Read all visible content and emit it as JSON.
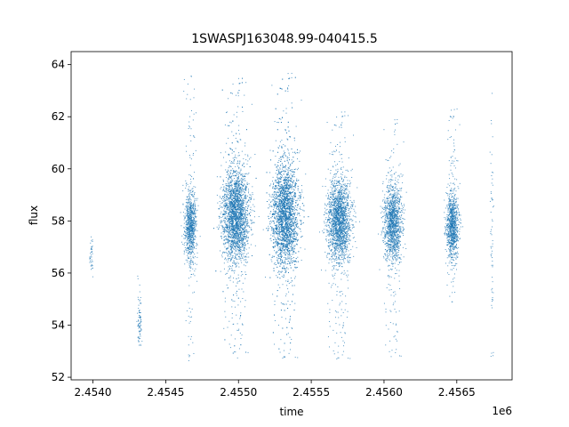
{
  "chart_data": {
    "type": "scatter",
    "title": "1SWASPJ163048.99-040415.5",
    "xlabel": "time",
    "ylabel": "flux",
    "x_offset_label": "1e6",
    "x_multiplier": 1000000,
    "xlim": [
      2.45385,
      2.45688
    ],
    "ylim": [
      51.9,
      64.5
    ],
    "x_ticks": [
      2.454,
      2.4545,
      2.455,
      2.4555,
      2.456,
      2.4565
    ],
    "x_tick_labels": [
      "2.4540",
      "2.4545",
      "2.4550",
      "2.4555",
      "2.4560",
      "2.4565"
    ],
    "y_ticks": [
      52,
      54,
      56,
      58,
      60,
      62,
      64
    ],
    "y_tick_labels": [
      "52",
      "54",
      "56",
      "58",
      "60",
      "62",
      "64"
    ],
    "grid": false,
    "marker_color": "#1f77b4",
    "clusters": [
      {
        "x_center": 2.45399,
        "x_spread": 6e-06,
        "y_center": 56.7,
        "y_core": 0.35,
        "y_min": 55.8,
        "y_max": 57.5,
        "count": 40
      },
      {
        "x_center": 2.45432,
        "x_spread": 8e-06,
        "y_center": 54.1,
        "y_core": 0.5,
        "y_min": 53.1,
        "y_max": 56.0,
        "count": 80
      },
      {
        "x_center": 2.45467,
        "x_spread": 2e-05,
        "y_center": 57.8,
        "y_core": 0.65,
        "y_min": 52.6,
        "y_max": 63.7,
        "count": 900
      },
      {
        "x_center": 2.45498,
        "x_spread": 4.5e-05,
        "y_center": 58.2,
        "y_core": 0.9,
        "y_min": 52.7,
        "y_max": 63.6,
        "count": 2800
      },
      {
        "x_center": 2.45532,
        "x_spread": 4.5e-05,
        "y_center": 58.2,
        "y_core": 1.0,
        "y_min": 52.5,
        "y_max": 63.8,
        "count": 3000
      },
      {
        "x_center": 2.45569,
        "x_spread": 4e-05,
        "y_center": 58.0,
        "y_core": 0.8,
        "y_min": 52.5,
        "y_max": 62.3,
        "count": 2000
      },
      {
        "x_center": 2.45606,
        "x_spread": 3e-05,
        "y_center": 57.9,
        "y_core": 0.75,
        "y_min": 52.6,
        "y_max": 62.0,
        "count": 1400
      },
      {
        "x_center": 2.45647,
        "x_spread": 2e-05,
        "y_center": 57.8,
        "y_core": 0.6,
        "y_min": 54.7,
        "y_max": 62.5,
        "count": 1000
      },
      {
        "x_center": 2.45674,
        "x_spread": 6e-06,
        "y_center": 58.0,
        "y_core": 2.5,
        "y_min": 52.7,
        "y_max": 63.7,
        "count": 60
      }
    ]
  }
}
